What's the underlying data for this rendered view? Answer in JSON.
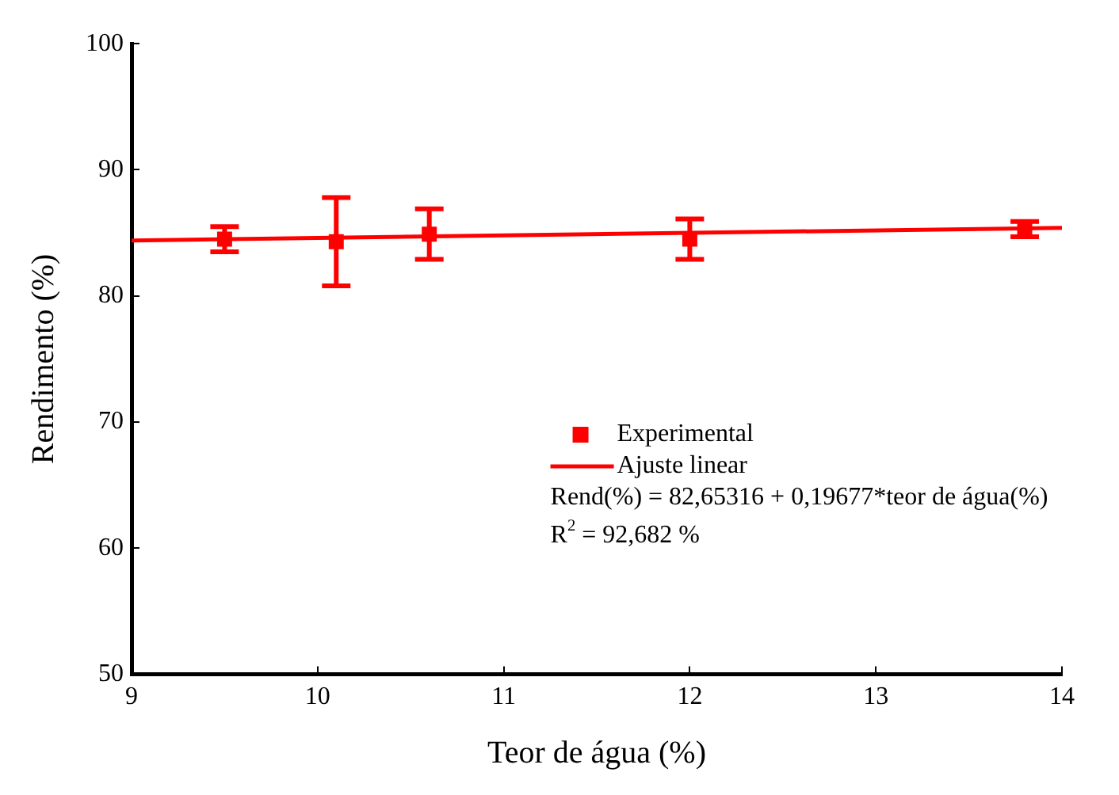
{
  "chart_data": {
    "type": "scatter",
    "xlabel": "Teor de água (%)",
    "ylabel": "Rendimento (%)",
    "xlim": [
      9,
      14
    ],
    "xticks": [
      9,
      10,
      11,
      12,
      13,
      14
    ],
    "ylim": [
      50,
      100
    ],
    "yticks": [
      50,
      60,
      70,
      80,
      90,
      100
    ],
    "grid": false,
    "legend": "center right",
    "marker": "square",
    "series": [
      {
        "name": "Experimental",
        "color": "#ff0000",
        "x": [
          9.5,
          10.1,
          10.6,
          12,
          13.8
        ],
        "values": [
          84.5,
          84.3,
          84.9,
          84.5,
          85.3
        ],
        "errors": [
          1,
          3.5,
          2,
          1.6,
          0.6
        ]
      },
      {
        "name": "Ajuste linear",
        "type": "line",
        "color": "#ff0000",
        "x": [
          9,
          14
        ],
        "values": [
          84.4,
          85.4
        ],
        "line_style": "solid",
        "marker": "none"
      }
    ],
    "annotations": [
      "Rend(%) = 82,65316 + 0,19677*teor de água(%)",
      "R$^{2}$ = 92,682 %"
    ]
  }
}
